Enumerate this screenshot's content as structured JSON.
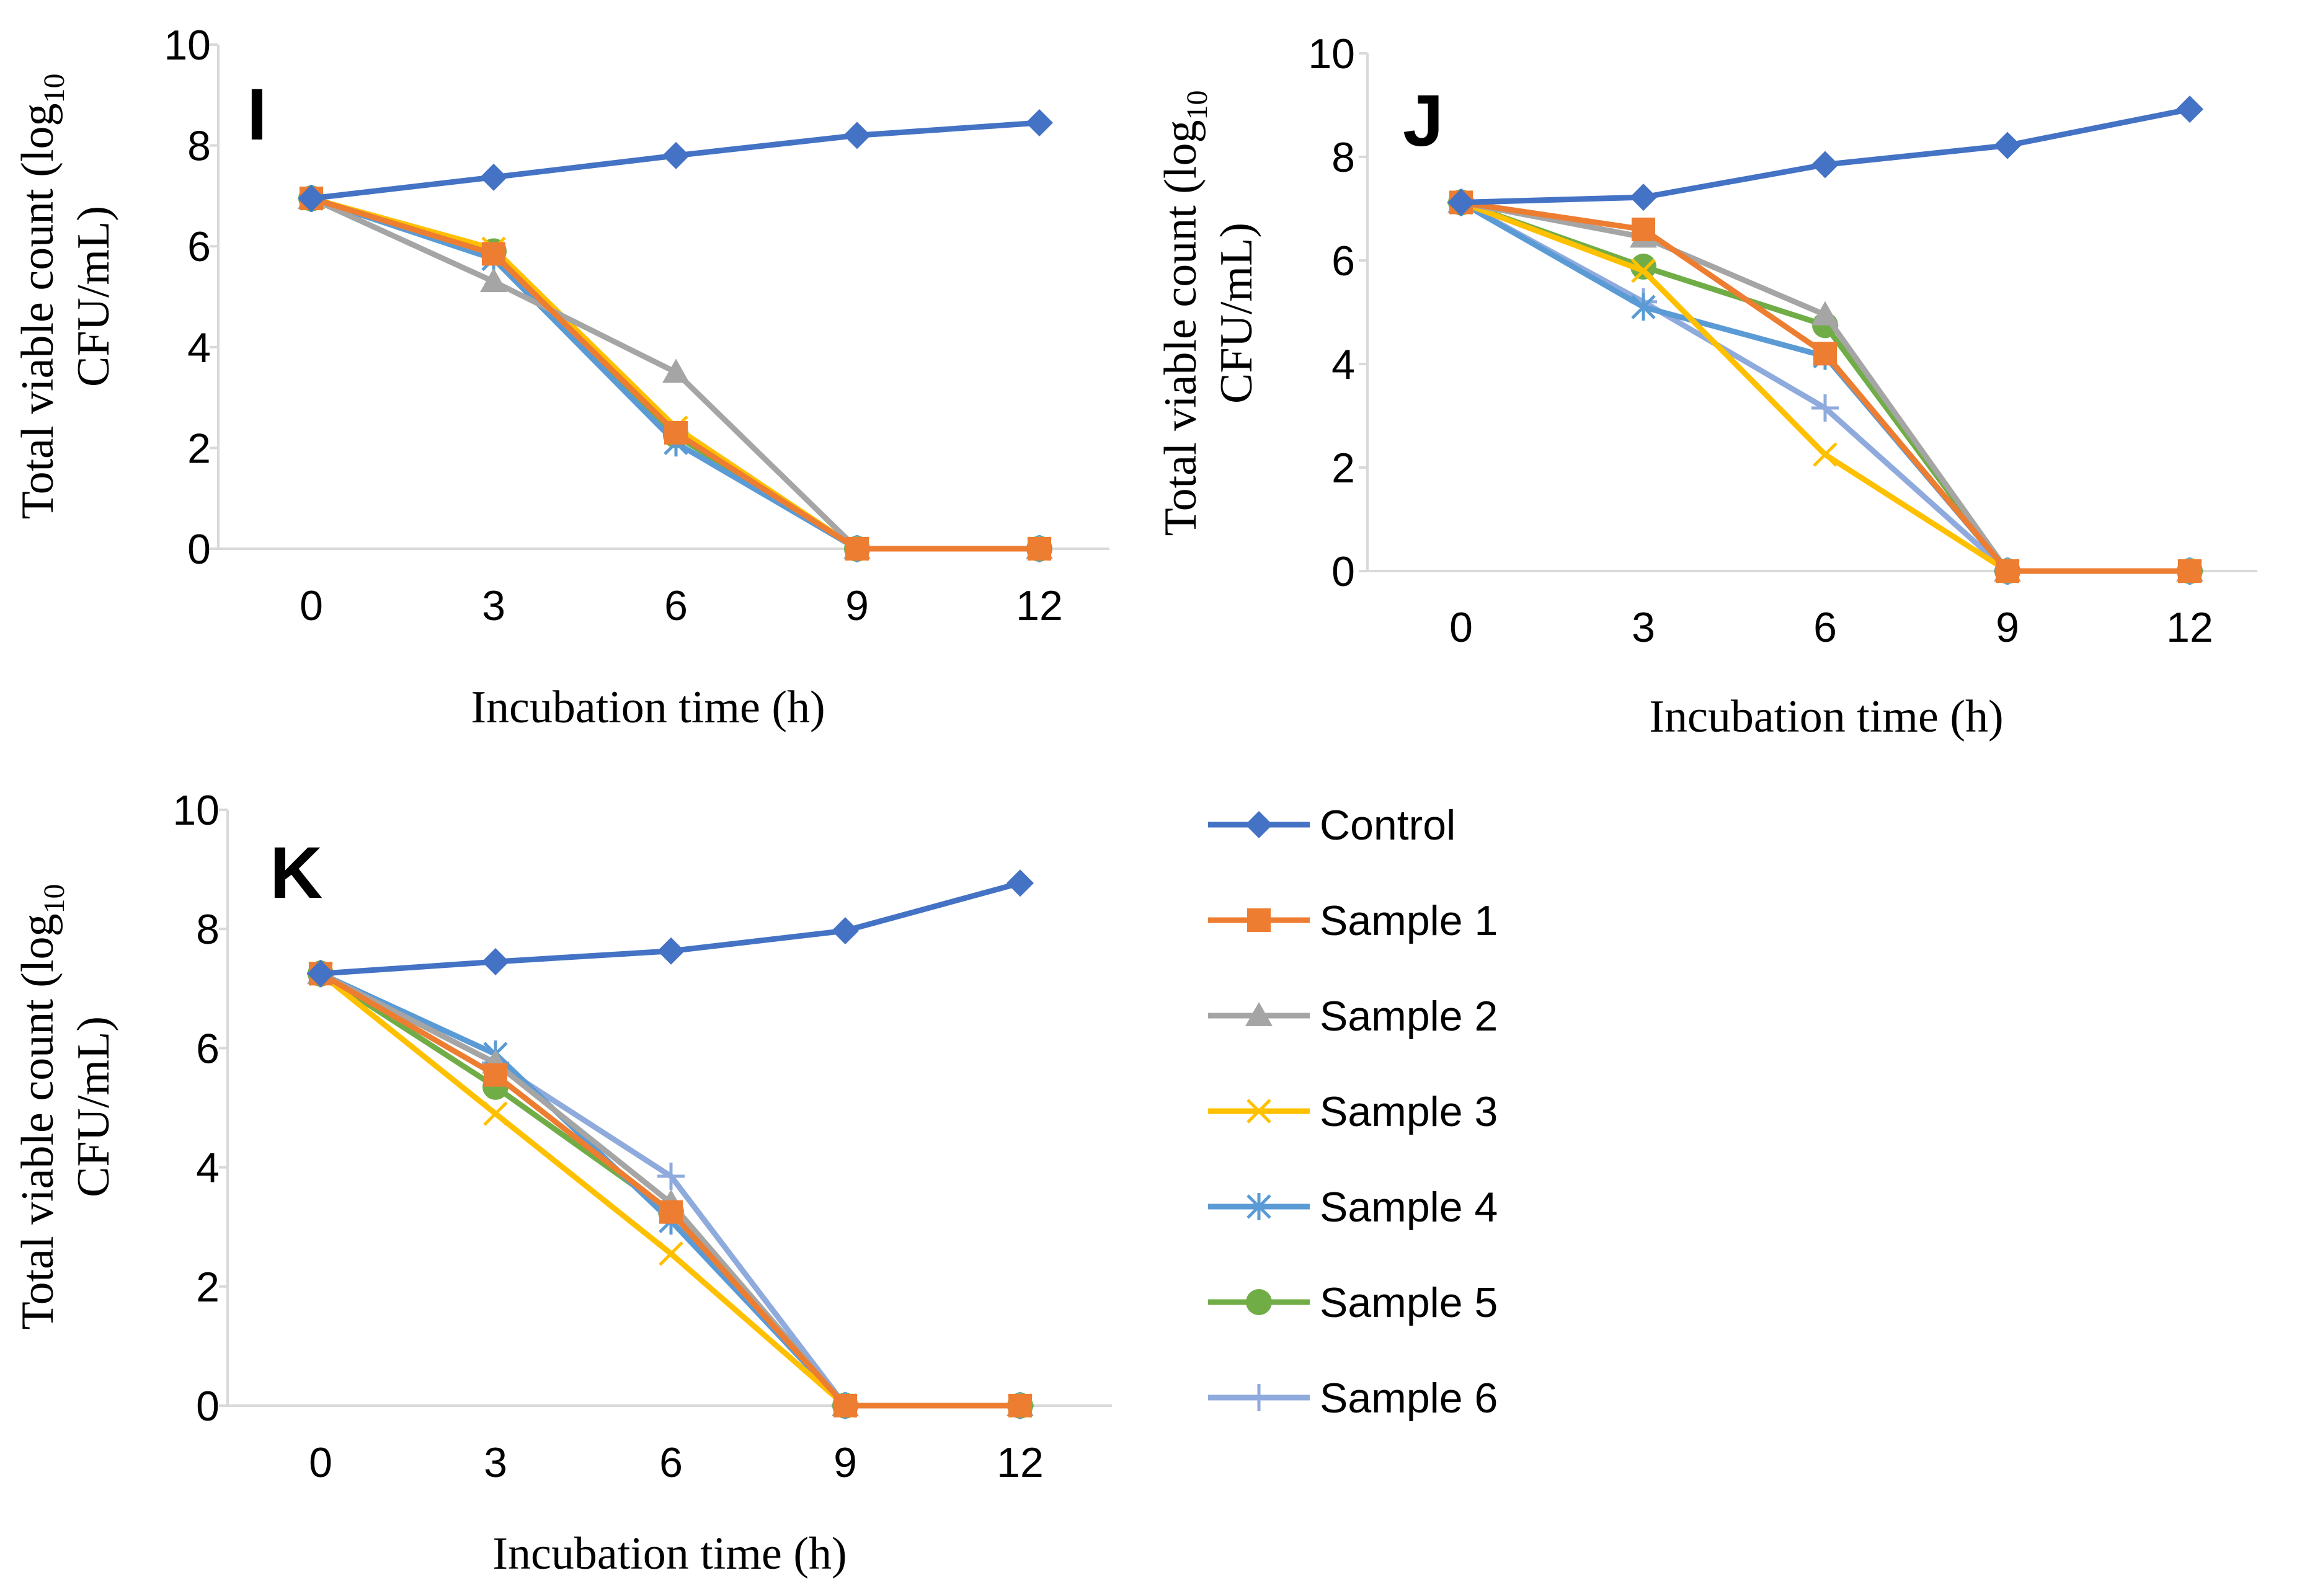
{
  "chart_data": [
    {
      "type": "line",
      "panel_label": "I",
      "x": [
        0,
        3,
        6,
        9,
        12
      ],
      "xlabel": "Incubation time (h)",
      "ylabel": {
        "main": "Total viable count (log",
        "sub": "10",
        "line2": "CFU/mL)"
      },
      "ylim": [
        0,
        10
      ],
      "yticks": [
        "0",
        "2",
        "4",
        "6",
        "8",
        "10"
      ],
      "xticks": [
        "0",
        "3",
        "6",
        "9",
        "12"
      ],
      "series": [
        {
          "name": "Control",
          "values": [
            6.95,
            7.37,
            7.8,
            8.2,
            8.45
          ]
        },
        {
          "name": "Sample 1",
          "values": [
            6.95,
            5.85,
            2.3,
            0,
            0
          ]
        },
        {
          "name": "Sample 2",
          "values": [
            6.95,
            5.3,
            3.5,
            0,
            0
          ]
        },
        {
          "name": "Sample 3",
          "values": [
            6.95,
            5.95,
            2.4,
            0,
            0
          ]
        },
        {
          "name": "Sample 4",
          "values": [
            6.95,
            5.75,
            2.1,
            0,
            0
          ]
        },
        {
          "name": "Sample 5",
          "values": [
            6.95,
            5.9,
            2.25,
            0,
            0
          ]
        }
      ]
    },
    {
      "type": "line",
      "panel_label": "J",
      "x": [
        0,
        3,
        6,
        9,
        12
      ],
      "xlabel": "Incubation time (h)",
      "ylabel": {
        "main": "Total viable count (log",
        "sub": "10",
        "line2": "CFU/mL)"
      },
      "ylim": [
        0,
        10
      ],
      "yticks": [
        "0",
        "2",
        "4",
        "6",
        "8",
        "10"
      ],
      "xticks": [
        "0",
        "3",
        "6",
        "9",
        "12"
      ],
      "series": [
        {
          "name": "Control",
          "values": [
            7.12,
            7.22,
            7.85,
            8.22,
            8.92
          ]
        },
        {
          "name": "Sample 1",
          "values": [
            7.12,
            6.6,
            4.2,
            0,
            0
          ]
        },
        {
          "name": "Sample 2",
          "values": [
            7.12,
            6.45,
            4.95,
            0,
            0
          ]
        },
        {
          "name": "Sample 3",
          "values": [
            7.12,
            5.8,
            2.25,
            0,
            0
          ]
        },
        {
          "name": "Sample 4",
          "values": [
            7.12,
            5.1,
            4.15,
            0,
            0
          ]
        },
        {
          "name": "Sample 5",
          "values": [
            7.12,
            5.88,
            4.75,
            0,
            0
          ]
        },
        {
          "name": "Sample 6",
          "values": [
            7.12,
            5.2,
            3.15,
            0,
            0
          ]
        }
      ]
    },
    {
      "type": "line",
      "panel_label": "K",
      "x": [
        0,
        3,
        6,
        9,
        12
      ],
      "xlabel": "Incubation time (h)",
      "ylabel": {
        "main": "Total viable count (log",
        "sub": "10",
        "line2": "CFU/mL)"
      },
      "ylim": [
        0,
        10
      ],
      "yticks": [
        "0",
        "2",
        "4",
        "6",
        "8",
        "10"
      ],
      "xticks": [
        "0",
        "3",
        "6",
        "9",
        "12"
      ],
      "series": [
        {
          "name": "Control",
          "values": [
            7.25,
            7.45,
            7.63,
            7.97,
            8.77
          ]
        },
        {
          "name": "Sample 1",
          "values": [
            7.25,
            5.55,
            3.25,
            0,
            0
          ]
        },
        {
          "name": "Sample 2",
          "values": [
            7.25,
            5.75,
            3.4,
            0,
            0
          ]
        },
        {
          "name": "Sample 3",
          "values": [
            7.25,
            4.9,
            2.55,
            0,
            0
          ]
        },
        {
          "name": "Sample 4",
          "values": [
            7.25,
            5.9,
            3.1,
            0,
            0
          ]
        },
        {
          "name": "Sample 5",
          "values": [
            7.25,
            5.35,
            3.25,
            0,
            0
          ]
        },
        {
          "name": "Sample 6",
          "values": [
            7.25,
            5.75,
            3.85,
            0,
            0
          ]
        }
      ]
    }
  ],
  "legend": {
    "placement": "bottom-right",
    "entries": [
      {
        "name": "Control",
        "color": "#4472c4",
        "marker": "diamond"
      },
      {
        "name": "Sample 1",
        "color": "#ed7d31",
        "marker": "square"
      },
      {
        "name": "Sample 2",
        "color": "#a5a5a5",
        "marker": "triangle"
      },
      {
        "name": "Sample 3",
        "color": "#ffc000",
        "marker": "x"
      },
      {
        "name": "Sample 4",
        "color": "#5b9bd5",
        "marker": "star"
      },
      {
        "name": "Sample 5",
        "color": "#70ad47",
        "marker": "circle"
      },
      {
        "name": "Sample 6",
        "color": "#8faadc",
        "marker": "plus"
      }
    ]
  }
}
